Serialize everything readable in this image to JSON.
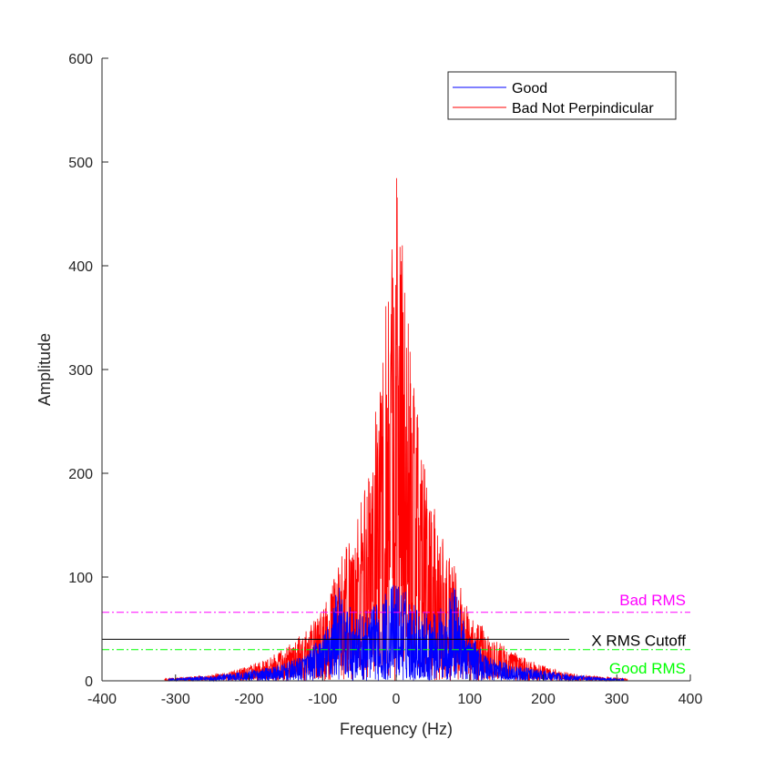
{
  "chart_data": {
    "type": "line",
    "title": "",
    "xlabel": "Frequency (Hz)",
    "ylabel": "Amplitude",
    "xlim": [
      -400,
      400
    ],
    "ylim": [
      0,
      600
    ],
    "xticks": [
      -400,
      -300,
      -200,
      -100,
      0,
      100,
      200,
      300,
      400
    ],
    "yticks": [
      0,
      100,
      200,
      300,
      400,
      500,
      600
    ],
    "grid": false,
    "legend_position": "top-right",
    "series": [
      {
        "name": "Good",
        "color": "#0000ff",
        "spectrum_range_hz": [
          -310,
          310
        ],
        "envelope_points": [
          [
            -310,
            2
          ],
          [
            -250,
            5
          ],
          [
            -200,
            10
          ],
          [
            -160,
            15
          ],
          [
            -140,
            20
          ],
          [
            -120,
            28
          ],
          [
            -100,
            45
          ],
          [
            -90,
            60
          ],
          [
            -80,
            97
          ],
          [
            -70,
            75
          ],
          [
            -60,
            70
          ],
          [
            -50,
            65
          ],
          [
            -40,
            68
          ],
          [
            -30,
            72
          ],
          [
            -20,
            80
          ],
          [
            -10,
            90
          ],
          [
            0,
            98
          ],
          [
            10,
            90
          ],
          [
            20,
            80
          ],
          [
            30,
            72
          ],
          [
            40,
            68
          ],
          [
            50,
            65
          ],
          [
            60,
            70
          ],
          [
            70,
            75
          ],
          [
            80,
            97
          ],
          [
            90,
            60
          ],
          [
            100,
            45
          ],
          [
            120,
            28
          ],
          [
            140,
            20
          ],
          [
            160,
            15
          ],
          [
            200,
            10
          ],
          [
            250,
            5
          ],
          [
            310,
            2
          ]
        ]
      },
      {
        "name": "Bad Not Perpindicular",
        "color": "#ff0000",
        "spectrum_range_hz": [
          -315,
          315
        ],
        "envelope_points": [
          [
            -315,
            2
          ],
          [
            -280,
            4
          ],
          [
            -250,
            6
          ],
          [
            -220,
            10
          ],
          [
            -200,
            15
          ],
          [
            -180,
            20
          ],
          [
            -160,
            28
          ],
          [
            -140,
            38
          ],
          [
            -120,
            50
          ],
          [
            -100,
            70
          ],
          [
            -90,
            85
          ],
          [
            -80,
            110
          ],
          [
            -70,
            130
          ],
          [
            -60,
            150
          ],
          [
            -50,
            170
          ],
          [
            -40,
            200
          ],
          [
            -30,
            250
          ],
          [
            -20,
            320
          ],
          [
            -10,
            420
          ],
          [
            -5,
            470
          ],
          [
            0,
            518
          ],
          [
            5,
            470
          ],
          [
            10,
            420
          ],
          [
            20,
            320
          ],
          [
            30,
            250
          ],
          [
            40,
            200
          ],
          [
            50,
            170
          ],
          [
            60,
            150
          ],
          [
            70,
            130
          ],
          [
            80,
            110
          ],
          [
            90,
            85
          ],
          [
            100,
            70
          ],
          [
            120,
            50
          ],
          [
            140,
            38
          ],
          [
            160,
            28
          ],
          [
            180,
            20
          ],
          [
            200,
            15
          ],
          [
            220,
            10
          ],
          [
            250,
            6
          ],
          [
            280,
            4
          ],
          [
            315,
            2
          ]
        ]
      }
    ],
    "reference_lines": [
      {
        "label": "Bad RMS",
        "y": 66,
        "color": "#ff00ff",
        "style": "dash-dot"
      },
      {
        "label": "X RMS Cutoff",
        "y": 40,
        "color": "#000000",
        "style": "solid"
      },
      {
        "label": "Good RMS",
        "y": 30,
        "color": "#00ff00",
        "style": "dash-dot"
      }
    ]
  }
}
